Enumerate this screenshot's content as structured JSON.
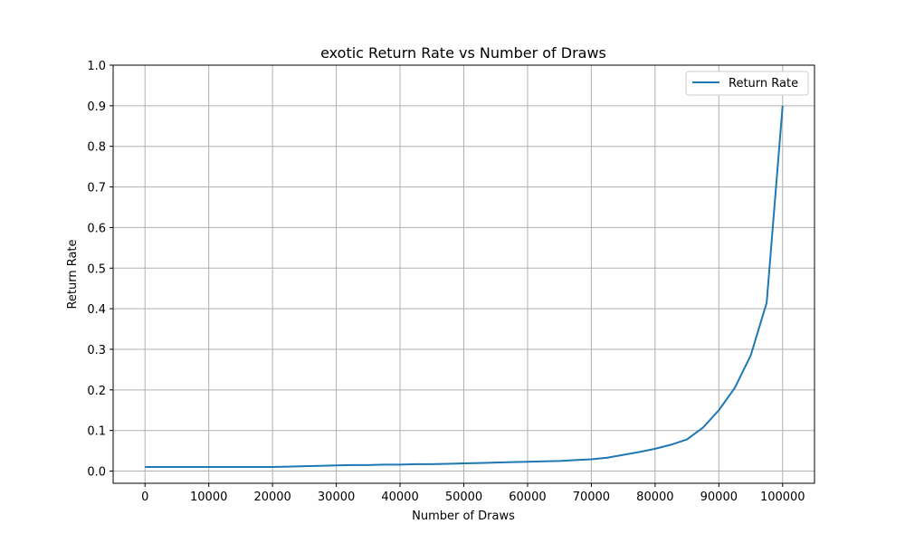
{
  "chart_data": {
    "type": "line",
    "title": "exotic Return Rate vs Number of Draws",
    "xlabel": "Number of Draws",
    "ylabel": "Return Rate",
    "xlim": [
      -5000,
      105000
    ],
    "ylim": [
      -0.03,
      1.0
    ],
    "xticks": [
      0,
      10000,
      20000,
      30000,
      40000,
      50000,
      60000,
      70000,
      80000,
      90000,
      100000
    ],
    "yticks": [
      0.0,
      0.1,
      0.2,
      0.3,
      0.4,
      0.5,
      0.6,
      0.7,
      0.8,
      0.9,
      1.0
    ],
    "xtick_labels": [
      "0",
      "10000",
      "20000",
      "30000",
      "40000",
      "50000",
      "60000",
      "70000",
      "80000",
      "90000",
      "100000"
    ],
    "ytick_labels": [
      "0.0",
      "0.1",
      "0.2",
      "0.3",
      "0.4",
      "0.5",
      "0.6",
      "0.7",
      "0.8",
      "0.9",
      "1.0"
    ],
    "grid": true,
    "legend_position": "top-right",
    "series": [
      {
        "name": "Return Rate",
        "color": "#1f77b4",
        "x": [
          0,
          2500,
          5000,
          7500,
          10000,
          12500,
          15000,
          17500,
          20000,
          22500,
          25000,
          27500,
          30000,
          32500,
          35000,
          37500,
          40000,
          42500,
          45000,
          47500,
          50000,
          52500,
          55000,
          57500,
          60000,
          62500,
          65000,
          67500,
          70000,
          72500,
          75000,
          77500,
          80000,
          82500,
          85000,
          87500,
          90000,
          92500,
          95000,
          97500,
          100000
        ],
        "y": [
          0.01,
          0.01,
          0.01,
          0.01,
          0.01,
          0.01,
          0.01,
          0.01,
          0.01,
          0.011,
          0.012,
          0.013,
          0.014,
          0.015,
          0.015,
          0.016,
          0.016,
          0.017,
          0.017,
          0.018,
          0.019,
          0.02,
          0.021,
          0.022,
          0.023,
          0.024,
          0.025,
          0.027,
          0.029,
          0.033,
          0.04,
          0.047,
          0.055,
          0.065,
          0.078,
          0.107,
          0.15,
          0.205,
          0.285,
          0.415,
          0.9
        ]
      }
    ]
  }
}
